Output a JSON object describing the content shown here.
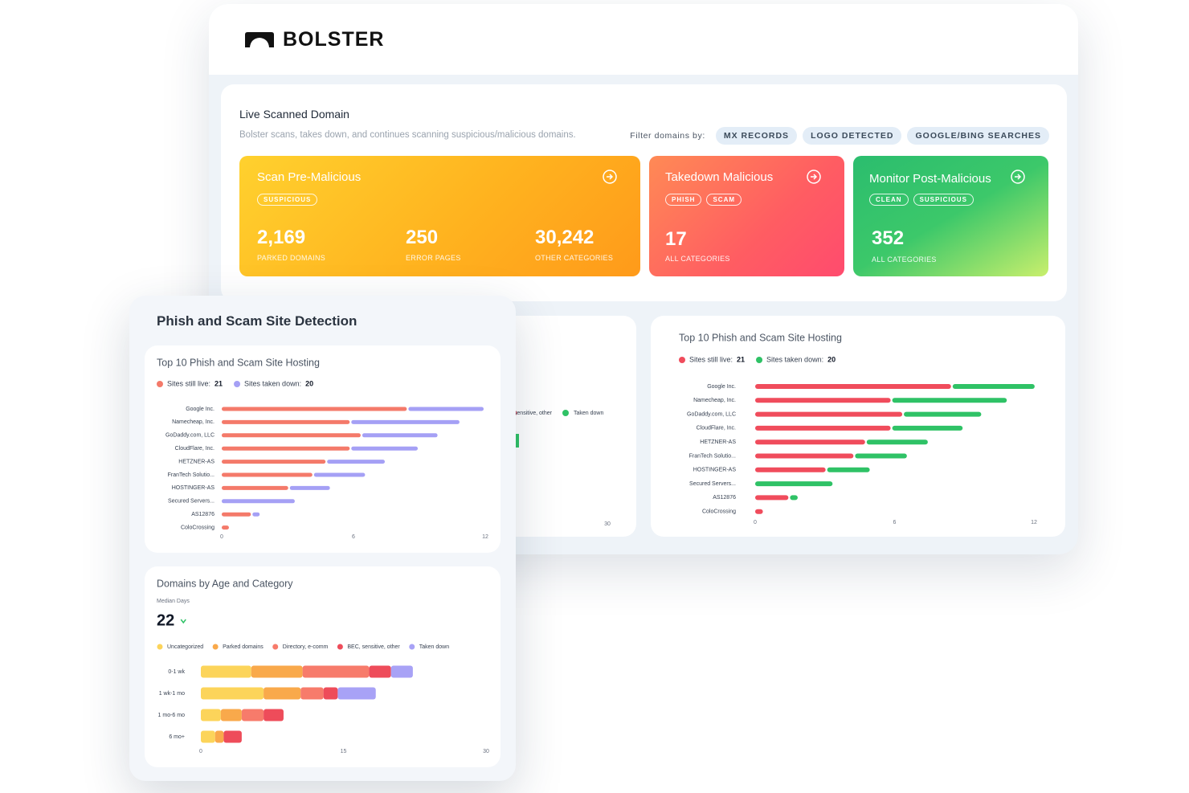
{
  "header": {
    "logo": "BOLSTER"
  },
  "live_scan": {
    "title": "Live Scanned Domain",
    "description": "Bolster scans, takes down, and continues scanning suspicious/malicious domains.",
    "filter_label": "Filter domains by:",
    "filters": [
      "MX RECORDS",
      "LOGO DETECTED",
      "GOOGLE/BING SEARCHES"
    ],
    "cards": [
      {
        "title": "Scan Pre-Malicious",
        "tags": [
          "SUSPICIOUS"
        ],
        "stats": [
          {
            "value": "2,169",
            "label": "PARKED DOMAINS"
          },
          {
            "value": "250",
            "label": "ERROR PAGES"
          },
          {
            "value": "30,242",
            "label": "OTHER CATEGORIES"
          }
        ]
      },
      {
        "title": "Takedown Malicious",
        "tags": [
          "PHISH",
          "SCAM"
        ],
        "stats": [
          {
            "value": "17",
            "label": "ALL CATEGORIES"
          }
        ]
      },
      {
        "title": "Monitor Post-Malicious",
        "tags": [
          "CLEAN",
          "SUSPICIOUS"
        ],
        "stats": [
          {
            "value": "352",
            "label": "ALL CATEGORIES"
          }
        ]
      }
    ]
  },
  "back_age_chart": {
    "legend": [
      "BEC, sensitive, other",
      "Taken down"
    ],
    "xtick": 30
  },
  "back_hosting_chart": {
    "type": "bar",
    "title": "Top 10 Phish and Scam Site Hosting",
    "categories": [
      "Google Inc.",
      "Namecheap, Inc.",
      "GoDaddy.com, LLC",
      "CloudFlare, Inc.",
      "HETZNER-AS",
      "FranTech Solutio...",
      "HOSTINGER-AS",
      "Secured Servers...",
      "AS12876",
      "ColoCrossing"
    ],
    "series": [
      {
        "name": "Sites still live:",
        "total": 21,
        "color": "#f04c5c",
        "values": [
          8.5,
          5.9,
          6.4,
          5.9,
          4.8,
          4.3,
          3.1,
          0,
          1.5,
          0.4
        ]
      },
      {
        "name": "Sites taken down:",
        "total": 20,
        "color": "#2fc266",
        "values": [
          3.6,
          5.0,
          3.4,
          3.1,
          2.7,
          2.3,
          1.9,
          3.4,
          0.4,
          0
        ]
      }
    ],
    "xlim": [
      0,
      12
    ],
    "xticks": [
      0,
      6,
      12
    ]
  },
  "detection_panel": {
    "title": "Phish and Scam Site Detection",
    "hosting_chart": {
      "type": "bar",
      "title": "Top 10 Phish and Scam Site Hosting",
      "categories": [
        "Google Inc.",
        "Namecheap, Inc.",
        "GoDaddy.com, LLC",
        "CloudFlare, Inc.",
        "HETZNER-AS",
        "FranTech Solutio...",
        "HOSTINGER-AS",
        "Secured Servers...",
        "AS12876",
        "ColoCrossing"
      ],
      "series": [
        {
          "name": "Sites still live:",
          "total": 21,
          "color": "#f47a6a",
          "values": [
            8.5,
            5.9,
            6.4,
            5.9,
            4.8,
            4.2,
            3.1,
            0,
            1.4,
            0.4
          ]
        },
        {
          "name": "Sites taken down:",
          "total": 20,
          "color": "#a5a0f5",
          "values": [
            3.5,
            5.0,
            3.5,
            3.1,
            2.7,
            2.4,
            1.9,
            3.4,
            0.4,
            0
          ]
        }
      ],
      "xlim": [
        0,
        12
      ],
      "xticks": [
        0,
        6,
        12
      ]
    },
    "age_chart": {
      "type": "bar",
      "title": "Domains by Age and Category",
      "metric_label": "Median Days",
      "metric_value": 22,
      "categories": [
        "0-1 wk",
        "1 wk-1 mo",
        "1 mo-6 mo",
        "6 mo+"
      ],
      "series": [
        {
          "name": "Uncategorized",
          "color": "#fcd45a",
          "values": [
            5.3,
            6.6,
            2.1,
            1.5
          ]
        },
        {
          "name": "Parked domains",
          "color": "#f9a94b",
          "values": [
            5.4,
            3.9,
            2.2,
            0.9
          ]
        },
        {
          "name": "Directory, e-comm",
          "color": "#f77b6b",
          "values": [
            7.0,
            2.4,
            2.3,
            0
          ]
        },
        {
          "name": "BEC, sensitive, other",
          "color": "#ee4c5a",
          "values": [
            2.3,
            1.5,
            2.1,
            1.9
          ]
        },
        {
          "name": "Taken down",
          "color": "#a8a2f6",
          "values": [
            2.3,
            4.0,
            0,
            0
          ]
        }
      ],
      "xlim": [
        0,
        30
      ],
      "xticks": [
        0,
        15,
        30
      ]
    }
  }
}
